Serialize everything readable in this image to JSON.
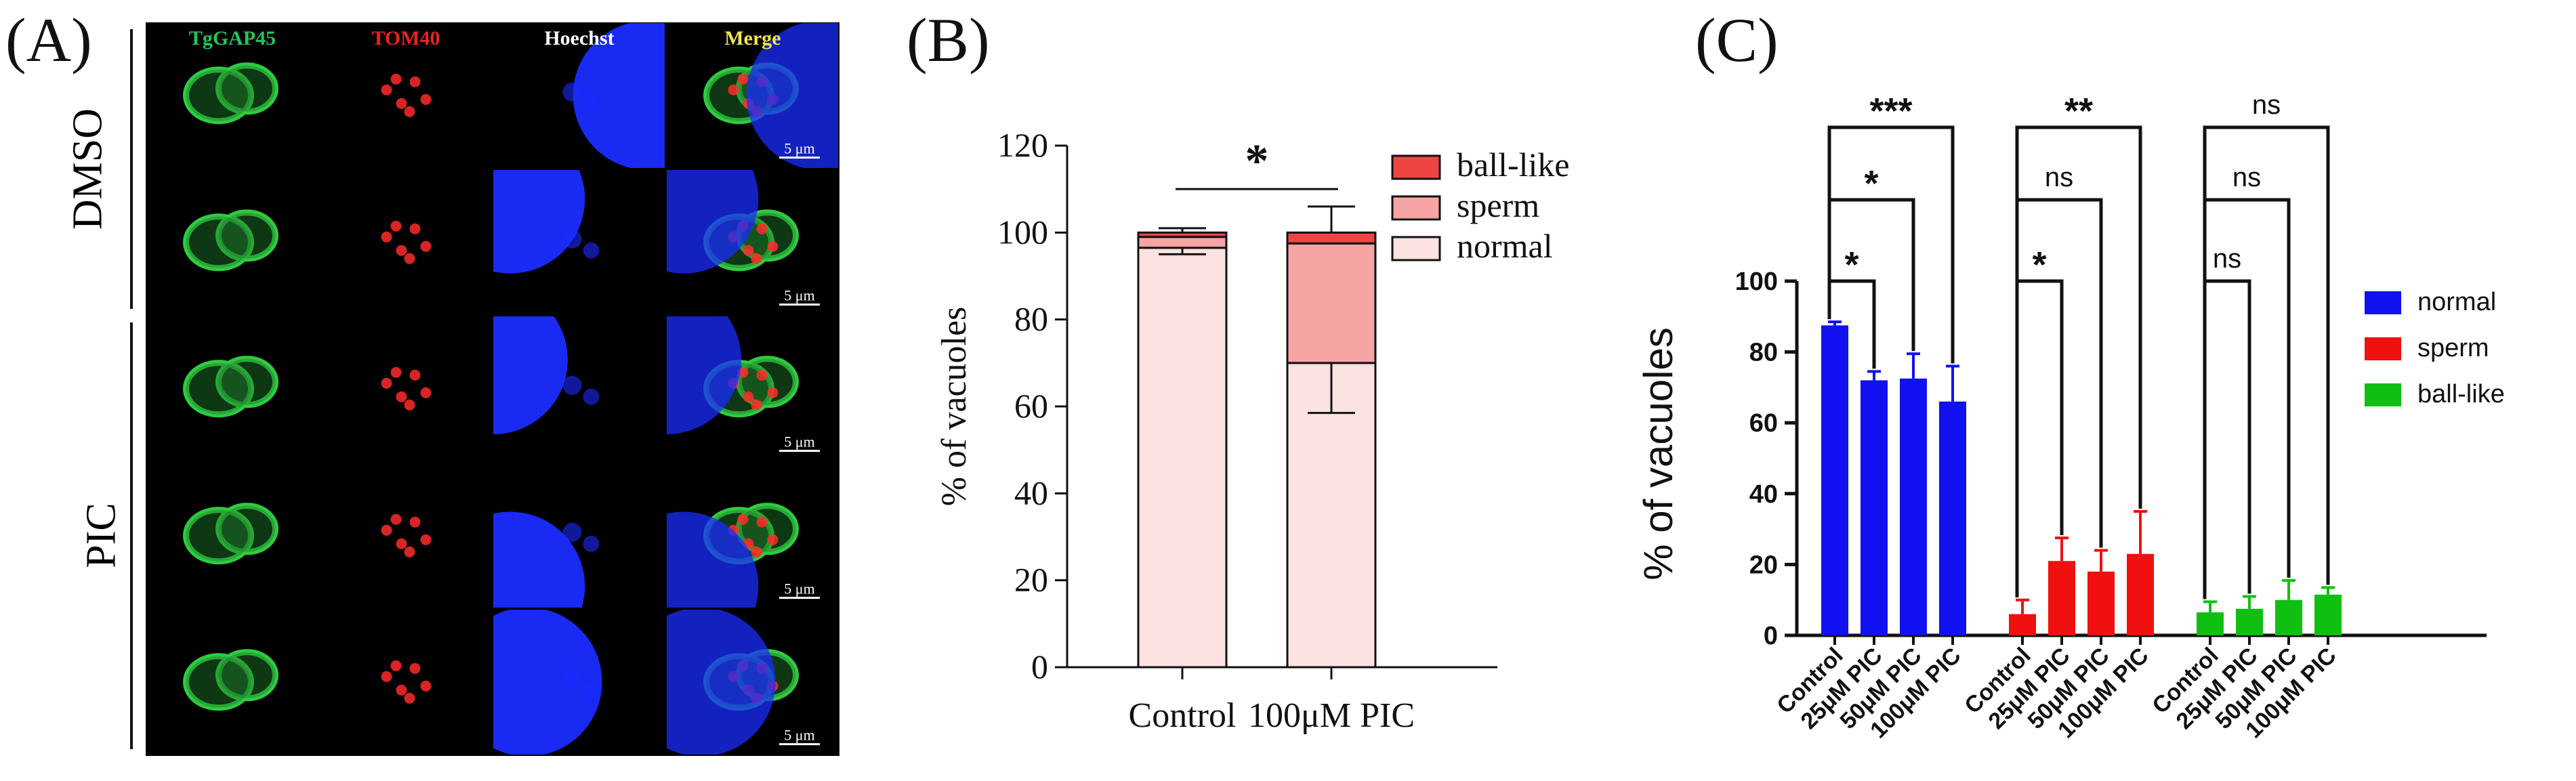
{
  "panels": {
    "a": {
      "letter": "(A)",
      "channels": [
        {
          "label": "TgGAP45",
          "color": "#22c55e"
        },
        {
          "label": "TOM40",
          "color": "#ef2020"
        },
        {
          "label": "Hoechst",
          "color": "#ffffff"
        },
        {
          "label": "Merge",
          "color": "#f5e642"
        }
      ],
      "groups": [
        {
          "label": "DMSO",
          "rows": 2
        },
        {
          "label": "PIC",
          "rows": 3
        }
      ],
      "scale_bar": "5 μm"
    },
    "b": {
      "letter": "(B)"
    },
    "c": {
      "letter": "(C)"
    }
  },
  "chart_data": [
    {
      "type": "bar",
      "stacked": true,
      "categories": [
        "Control",
        "100μM PIC"
      ],
      "series": [
        {
          "name": "normal",
          "color": "#fde2e2",
          "values": [
            96.5,
            70
          ],
          "errors": [
            1.5,
            11.5
          ]
        },
        {
          "name": "sperm",
          "color": "#f6a3a3",
          "values": [
            2.5,
            27.5
          ],
          "errors": [
            0,
            0
          ]
        },
        {
          "name": "ball-like",
          "color": "#ef4444",
          "values": [
            1,
            2.5
          ],
          "errors": [
            1,
            6
          ]
        }
      ],
      "legend_order": [
        "ball-like",
        "sperm",
        "normal"
      ],
      "ylabel": "% of vacuoles",
      "ylim": [
        0,
        120
      ],
      "yticks": [
        0,
        20,
        40,
        60,
        80,
        100,
        120
      ],
      "significance": [
        {
          "between": [
            "Control",
            "100μM PIC"
          ],
          "label": "*"
        }
      ]
    },
    {
      "type": "bar",
      "categories": [
        "Control",
        "25μM PIC",
        "50μM PIC",
        "100μM PIC"
      ],
      "series": [
        {
          "name": "normal",
          "color": "#1010f0",
          "values": [
            87.5,
            72,
            72.5,
            66
          ],
          "errors": [
            1,
            2.5,
            7,
            10
          ]
        },
        {
          "name": "sperm",
          "color": "#f01010",
          "values": [
            6,
            21,
            18,
            23
          ],
          "errors": [
            4,
            6.5,
            6,
            12
          ]
        },
        {
          "name": "ball-like",
          "color": "#10c010",
          "values": [
            6.5,
            7.5,
            10,
            11.5
          ],
          "errors": [
            3,
            3.5,
            5.5,
            2
          ]
        }
      ],
      "ylabel": "% of vacuoles",
      "ylim": [
        0,
        100
      ],
      "yticks": [
        0,
        20,
        40,
        60,
        80,
        100
      ],
      "significance": [
        {
          "series": "normal",
          "pairs": [
            {
              "vs": "25μM PIC",
              "label": "*"
            },
            {
              "vs": "50μM PIC",
              "label": "*"
            },
            {
              "vs": "100μM PIC",
              "label": "***"
            }
          ]
        },
        {
          "series": "sperm",
          "pairs": [
            {
              "vs": "25μM PIC",
              "label": "*"
            },
            {
              "vs": "50μM PIC",
              "label": "ns"
            },
            {
              "vs": "100μM PIC",
              "label": "**"
            }
          ]
        },
        {
          "series": "ball-like",
          "pairs": [
            {
              "vs": "25μM PIC",
              "label": "ns"
            },
            {
              "vs": "50μM PIC",
              "label": "ns"
            },
            {
              "vs": "100μM PIC",
              "label": "ns"
            }
          ]
        }
      ]
    }
  ]
}
